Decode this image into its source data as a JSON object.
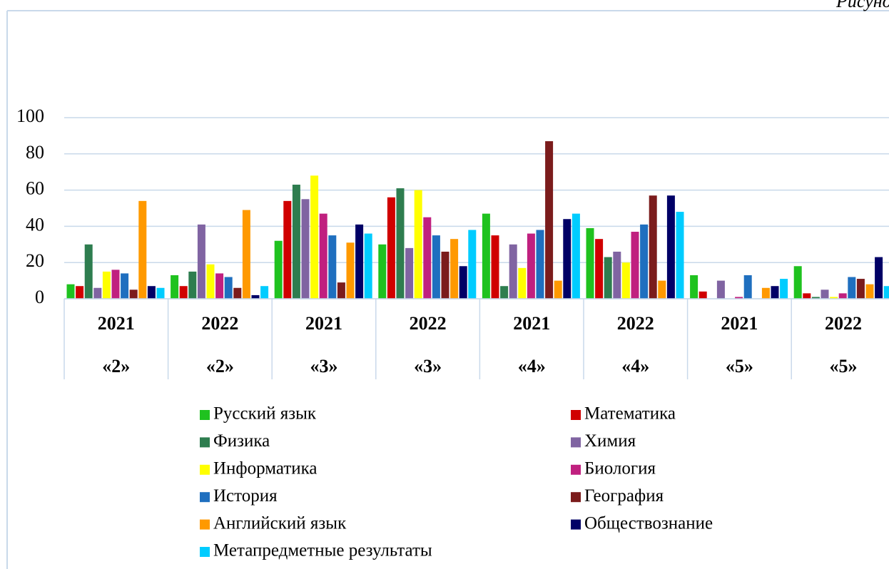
{
  "caption": "Рисунок",
  "chart_data": {
    "type": "bar",
    "categories": [
      "2021",
      "2022",
      "2021",
      "2022",
      "2021",
      "2022",
      "2021",
      "2022"
    ],
    "subcategories": [
      "«2»",
      "«2»",
      "«3»",
      "«3»",
      "«4»",
      "«4»",
      "«5»",
      "«5»"
    ],
    "ylim": [
      0,
      100
    ],
    "yticks": [
      0,
      20,
      40,
      60,
      80,
      100
    ],
    "grid": true,
    "series": [
      {
        "name": "Русский язык",
        "color": "#1fc21f",
        "values": [
          8,
          13,
          32,
          30,
          47,
          39,
          13,
          18
        ]
      },
      {
        "name": "Математика",
        "color": "#d00000",
        "values": [
          7,
          7,
          54,
          56,
          35,
          33,
          4,
          3
        ]
      },
      {
        "name": "Физика",
        "color": "#2e7d4f",
        "values": [
          30,
          15,
          63,
          61,
          7,
          23,
          0,
          1
        ]
      },
      {
        "name": "Химия",
        "color": "#8064a2",
        "values": [
          6,
          41,
          55,
          28,
          30,
          26,
          10,
          5
        ]
      },
      {
        "name": "Информатика",
        "color": "#ffff00",
        "values": [
          15,
          19,
          68,
          60,
          17,
          20,
          0,
          1
        ]
      },
      {
        "name": "Биология",
        "color": "#c0207f",
        "values": [
          16,
          14,
          47,
          45,
          36,
          37,
          1,
          3
        ]
      },
      {
        "name": "История",
        "color": "#1f6fbf",
        "values": [
          14,
          12,
          35,
          35,
          38,
          41,
          13,
          12
        ]
      },
      {
        "name": "География",
        "color": "#7b1c1c",
        "values": [
          5,
          6,
          9,
          26,
          87,
          57,
          0,
          11
        ]
      },
      {
        "name": "Английский язык",
        "color": "#ff9900",
        "values": [
          54,
          49,
          31,
          33,
          10,
          10,
          6,
          8
        ]
      },
      {
        "name": "Обществознание",
        "color": "#000066",
        "values": [
          7,
          2,
          41,
          18,
          44,
          57,
          7,
          23
        ]
      },
      {
        "name": "Метапредметные результаты",
        "color": "#00ccff",
        "values": [
          6,
          7,
          36,
          38,
          47,
          48,
          11,
          7
        ]
      }
    ]
  }
}
